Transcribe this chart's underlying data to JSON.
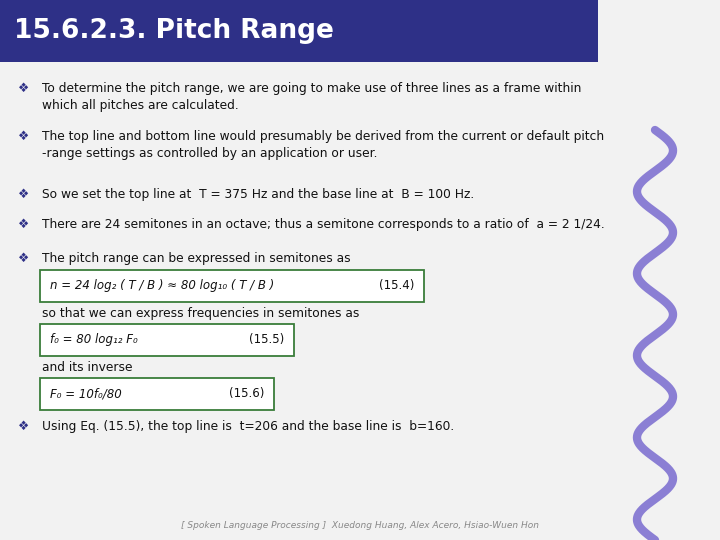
{
  "title": "15.6.2.3. Pitch Range",
  "title_bg": "#2E3087",
  "title_color": "#FFFFFF",
  "bg_color": "#F2F2F2",
  "bullet_color": "#2E3087",
  "bullet_char": "❖",
  "bullets": [
    "To determine the pitch range, we are going to make use of three lines as a frame within\nwhich all pitches are calculated.",
    "The top line and bottom line would presumably be derived from the current or default pitch\n-range settings as controlled by an application or user.",
    "So we set the top line at  T = 375 Hz and the base line at  B = 100 Hz.",
    "There are 24 semitones in an octave; thus a semitone corresponds to a ratio of  a = 2 1/24.",
    "The pitch range can be expressed in semitones as"
  ],
  "eq1_text": "n = 24 log₂ ( T / B ) ≈ 80 log₁₀ ( T / B )",
  "eq1_label": "(15.4)",
  "eq2_intro": "so that we can express frequencies in semitones as",
  "eq2_text": "f₀ = 80 log₁₂ F₀",
  "eq2_label": "(15.5)",
  "eq3_intro": "and its inverse",
  "eq3_text": "F₀ = 10f₀/80",
  "eq3_label": "(15.6)",
  "last_bullet": "Using Eq. (15.5), the top line is  t=206 and the base line is  b=160.",
  "footer": "[ Spoken Language Processing ]  Xuedong Huang, Alex Acero, Hsiao-Wuen Hon",
  "footer_color": "#888888",
  "eq_border_color": "#3A7D3A",
  "eq_bg": "#FFFFFF",
  "wave_color": "#8B7FD4",
  "text_color": "#111111"
}
